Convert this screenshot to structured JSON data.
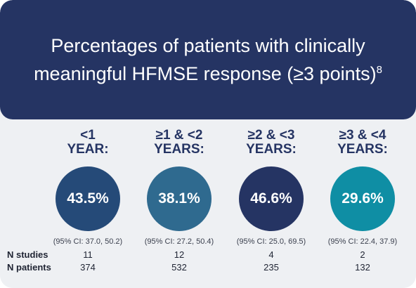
{
  "header": {
    "title": "Percentages of patients with clinically meaningful HFMSE response (≥3 points)",
    "ref": "8",
    "color": "#253463"
  },
  "chart_data": {
    "type": "table",
    "categories": [
      "<1 YEAR:",
      "≥1 & <2 YEARS:",
      "≥2 & <3 YEARS:",
      "≥3 & <4 YEARS:"
    ],
    "label_lines": [
      [
        "<1",
        "YEAR:"
      ],
      [
        "≥1 & <2",
        "YEARS:"
      ],
      [
        "≥2 & <3",
        "YEARS:"
      ],
      [
        "≥3 & <4",
        "YEARS:"
      ]
    ],
    "values": [
      43.5,
      38.1,
      46.6,
      29.6
    ],
    "value_labels": [
      "43.5%",
      "38.1%",
      "46.6%",
      "29.6%"
    ],
    "ci_labels": [
      "(95% CI: 37.0, 50.2)",
      "(95% CI: 27.2, 50.4)",
      "(95% CI: 25.0, 69.5)",
      "(95% CI: 22.4, 37.9)"
    ],
    "colors": [
      "#254a78",
      "#2f6a8f",
      "#253463",
      "#0f8ea4"
    ],
    "rows": [
      {
        "label": "N studies",
        "values": [
          "11",
          "12",
          "4",
          "2"
        ]
      },
      {
        "label": "N patients",
        "values": [
          "374",
          "532",
          "235",
          "132"
        ]
      }
    ]
  }
}
